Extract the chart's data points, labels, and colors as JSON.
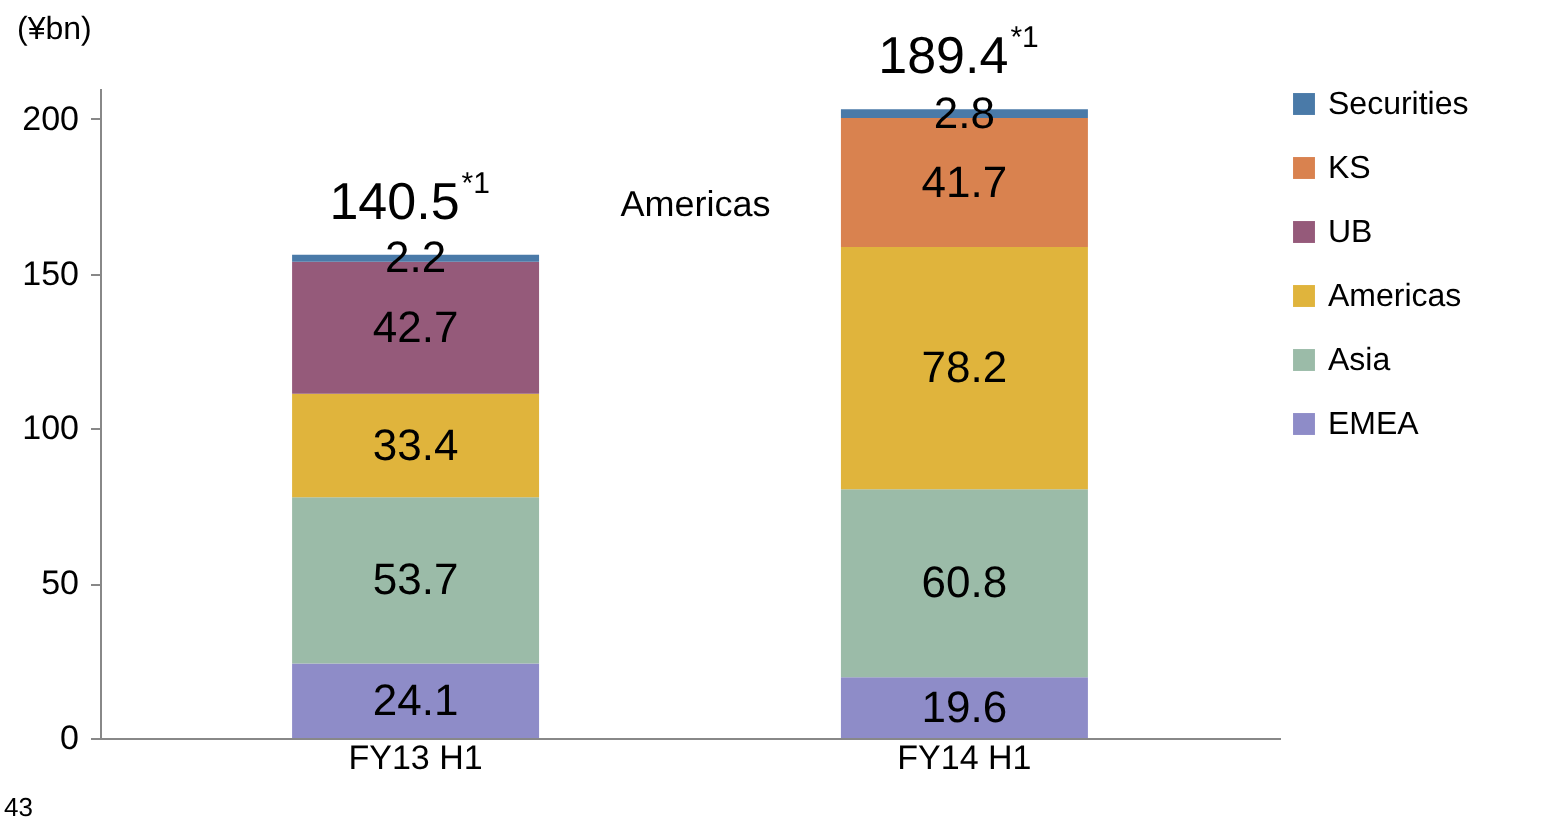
{
  "chart_data": {
    "type": "bar",
    "stacked": true,
    "ylabel": "(¥bn)",
    "categories": [
      "FY13 H1",
      "FY14 H1"
    ],
    "series": [
      {
        "name": "EMEA",
        "color": "#8e8cc8",
        "values": [
          24.1,
          19.6
        ]
      },
      {
        "name": "Asia",
        "color": "#9bbba8",
        "values": [
          53.7,
          60.8
        ]
      },
      {
        "name": "Americas",
        "color": "#e0b43c",
        "values": [
          33.4,
          78.2
        ]
      },
      {
        "name": "UB",
        "color": "#955a7a",
        "values": [
          42.7,
          null
        ]
      },
      {
        "name": "KS",
        "color": "#d9824f",
        "values": [
          null,
          41.7
        ]
      },
      {
        "name": "Securities",
        "color": "#4a7aa8",
        "values": [
          2.2,
          2.8
        ]
      }
    ],
    "ylim": [
      0,
      210
    ],
    "yticks": [
      0,
      50,
      100,
      150,
      200
    ],
    "grid": false,
    "legend": "right",
    "data_labels": true,
    "totals": [
      "140.5$^{*1}$",
      "189.4$^{*1}$"
    ],
    "annotations": [
      "Americas",
      "43"
    ]
  }
}
